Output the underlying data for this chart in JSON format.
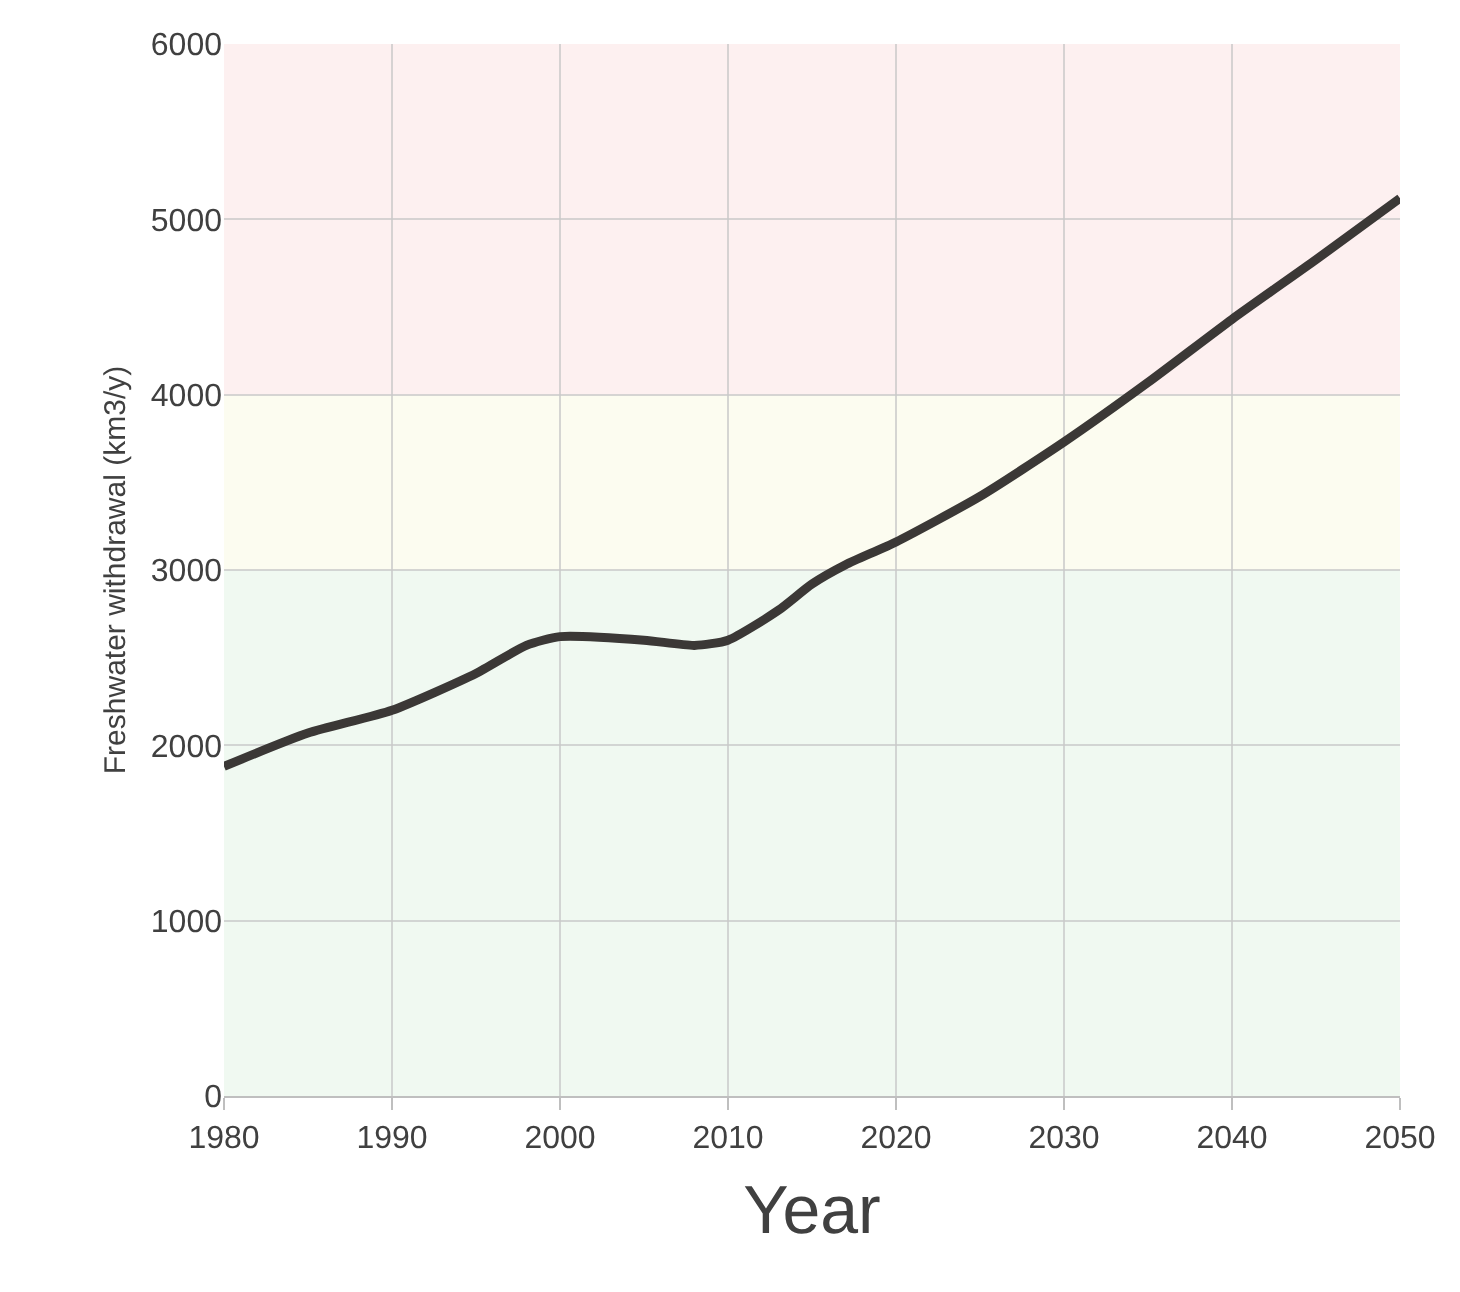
{
  "chart_data": {
    "type": "line",
    "xlabel": "Year",
    "ylabel": "Freshwater withdrawal (km3/y)",
    "x": [
      1980,
      1985,
      1990,
      1995,
      1998,
      2000,
      2005,
      2008,
      2010,
      2013,
      2015,
      2017,
      2020,
      2025,
      2030,
      2035,
      2040,
      2045,
      2050
    ],
    "series": [
      {
        "color": "#3b3836",
        "values": [
          1880,
          2070,
          2200,
          2410,
          2570,
          2620,
          2600,
          2570,
          2600,
          2770,
          2920,
          3030,
          3160,
          3420,
          3730,
          4070,
          4430,
          4770,
          5120
        ]
      }
    ],
    "xlim": [
      1980,
      2050
    ],
    "xticks": [
      1980,
      1990,
      2000,
      2010,
      2020,
      2030,
      2040,
      2050
    ],
    "ylim": [
      0,
      6000
    ],
    "yticks": [
      0,
      1000,
      2000,
      3000,
      4000,
      5000,
      6000
    ],
    "bands": [
      {
        "axis": "y",
        "from": 0,
        "to": 3000,
        "color": "#f0f9f1"
      },
      {
        "axis": "y",
        "from": 3000,
        "to": 4000,
        "color": "#fcfcf0"
      },
      {
        "axis": "y",
        "from": 4000,
        "to": 6000,
        "color": "#fdf0f0"
      }
    ],
    "grid": true,
    "marker": "none",
    "line_style": "solid"
  }
}
